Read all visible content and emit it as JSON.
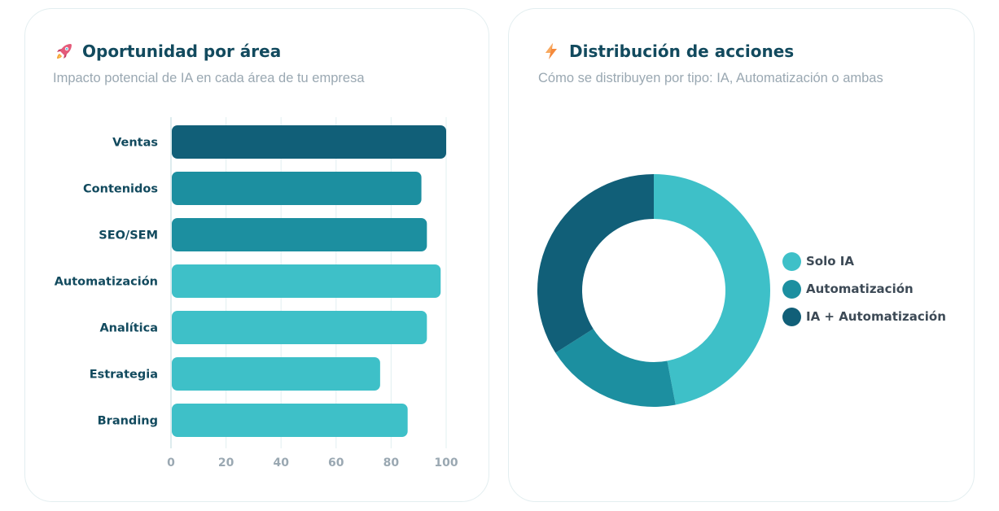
{
  "cards": {
    "left": {
      "title": "Oportunidad por área",
      "subtitle": "Impacto potencial de IA en cada área de tu empresa",
      "icon": "rocket-icon"
    },
    "right": {
      "title": "Distribución de acciones",
      "subtitle": "Cómo se distribuyen por tipo: IA, Automatización o ambas",
      "icon": "lightning-icon"
    }
  },
  "colors": {
    "dark": "#115f78",
    "mid": "#1c8fa0",
    "light": "#3ec0c8",
    "title": "#124a5e",
    "grid": "#e6f2f3",
    "tick": "#9aa8b2"
  },
  "chart_data": [
    {
      "type": "bar",
      "orientation": "horizontal",
      "categories": [
        "Ventas",
        "Contenidos",
        "SEO/SEM",
        "Automatización",
        "Analítica",
        "Estrategia",
        "Branding"
      ],
      "values": [
        100,
        91,
        93,
        98,
        93,
        76,
        86
      ],
      "bar_colors": [
        "#115f78",
        "#1c8fa0",
        "#1c8fa0",
        "#3ec0c8",
        "#3ec0c8",
        "#3ec0c8",
        "#3ec0c8"
      ],
      "xticks": [
        0,
        20,
        40,
        60,
        80,
        100
      ],
      "xlim": [
        0,
        100
      ],
      "grid": true
    },
    {
      "type": "pie",
      "variant": "donut",
      "series": [
        {
          "name": "Solo IA",
          "value": 47,
          "color": "#3ec0c8"
        },
        {
          "name": "Automatización",
          "value": 19,
          "color": "#1c8fa0"
        },
        {
          "name": "IA + Automatización",
          "value": 34,
          "color": "#115f78"
        }
      ],
      "legend": "right"
    }
  ]
}
